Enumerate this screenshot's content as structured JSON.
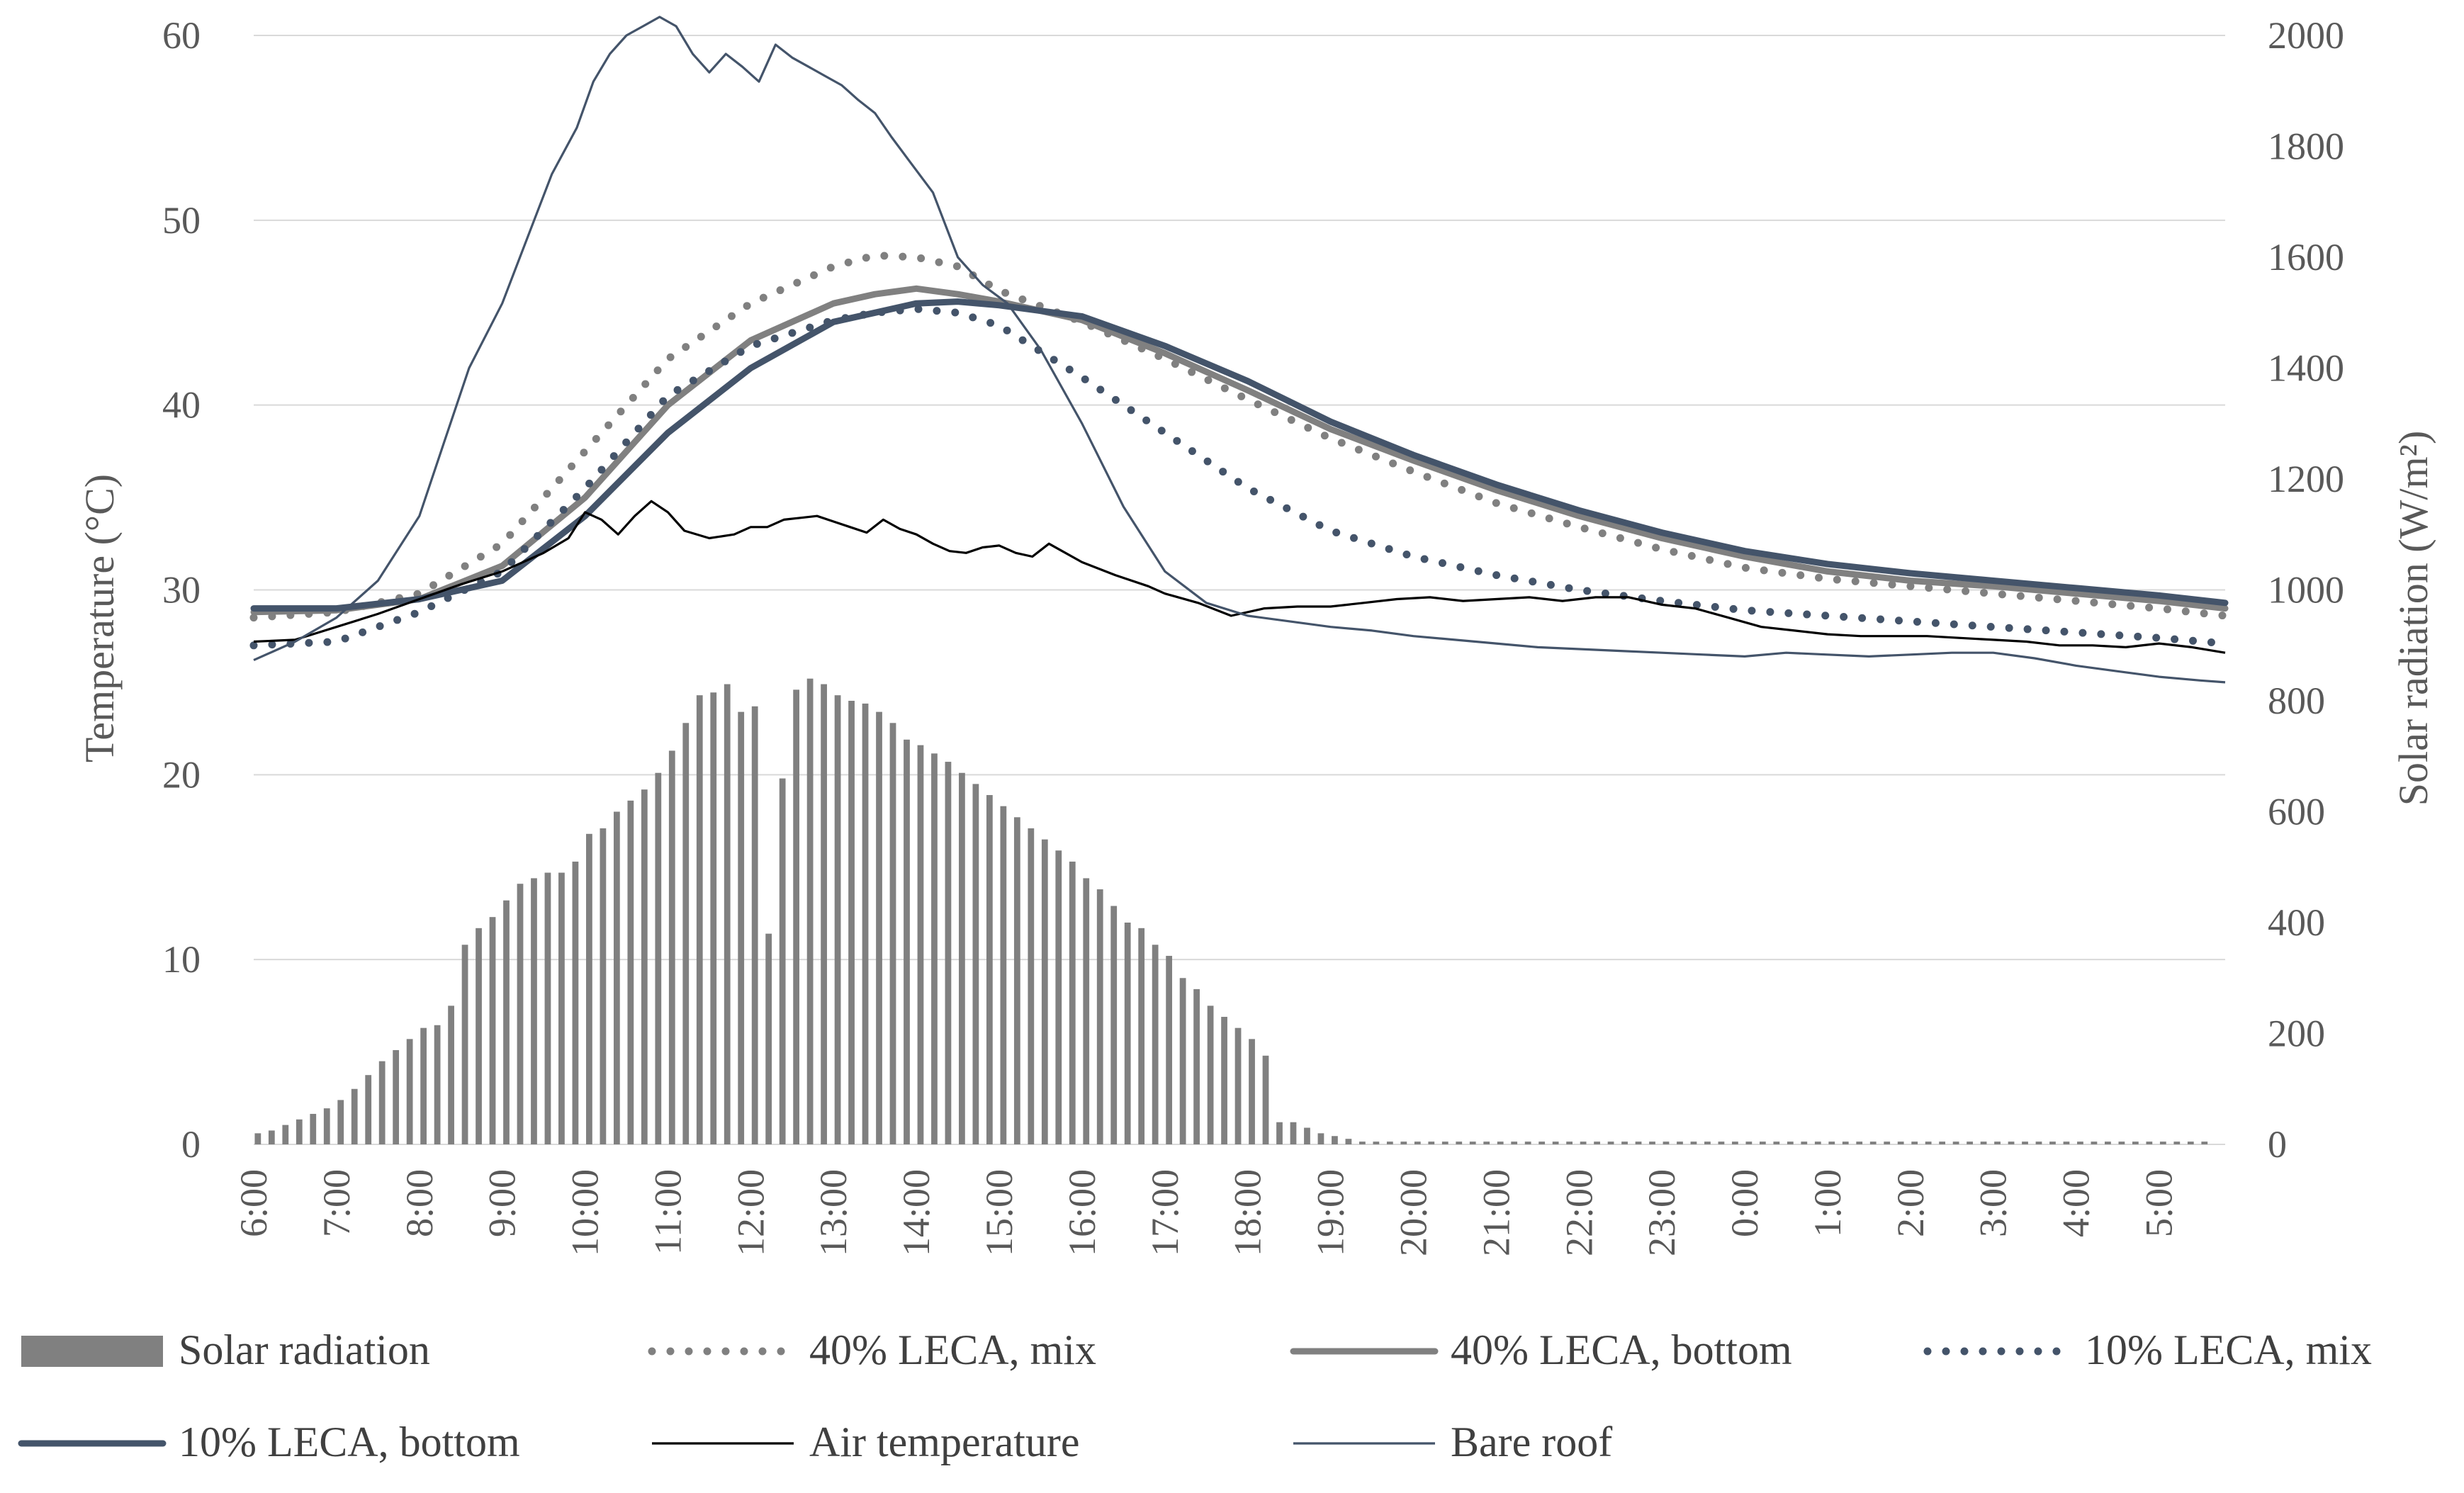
{
  "chart_data": {
    "type": "bar+line",
    "title": "",
    "xlabel": "",
    "ylabel_left": "Temperature  (°C)",
    "ylabel_right": "Solar radiation  (W/m²)",
    "ylim_left": [
      0,
      60
    ],
    "ylim_right": [
      0,
      2000
    ],
    "yticks_left": [
      "0",
      "10",
      "20",
      "30",
      "40",
      "50",
      "60"
    ],
    "yticks_right": [
      "0",
      "200",
      "400",
      "600",
      "800",
      "1000",
      "1200",
      "1400",
      "1600",
      "1800",
      "2000"
    ],
    "x_hours": [
      6,
      29.8
    ],
    "x_tick_labels": [
      "6:00",
      "7:00",
      "8:00",
      "9:00",
      "10:00",
      "11:00",
      "12:00",
      "13:00",
      "14:00",
      "15:00",
      "16:00",
      "17:00",
      "18:00",
      "19:00",
      "20:00",
      "21:00",
      "22:00",
      "23:00",
      "0:00",
      "1:00",
      "2:00",
      "3:00",
      "4:00",
      "5:00"
    ],
    "grid": true,
    "legend_position": "bottom",
    "solar_radiation": {
      "name": "Solar radiation",
      "color": "#808080",
      "step_minutes": 10,
      "values": [
        20,
        25,
        35,
        45,
        55,
        65,
        80,
        100,
        125,
        150,
        170,
        190,
        210,
        215,
        250,
        360,
        390,
        410,
        440,
        470,
        480,
        490,
        490,
        510,
        560,
        570,
        600,
        620,
        640,
        670,
        710,
        760,
        810,
        815,
        830,
        780,
        790,
        380,
        660,
        820,
        840,
        830,
        810,
        800,
        795,
        780,
        760,
        730,
        720,
        705,
        690,
        670,
        650,
        630,
        610,
        590,
        570,
        550,
        530,
        510,
        480,
        460,
        430,
        400,
        390,
        360,
        340,
        300,
        280,
        250,
        230,
        210,
        190,
        160,
        40,
        40,
        30,
        20,
        15,
        10,
        5,
        5,
        5,
        5,
        5,
        5,
        5,
        5,
        5,
        5,
        5,
        5,
        5,
        5,
        5,
        5,
        5,
        5,
        5,
        5,
        5,
        5,
        5,
        5,
        5,
        5,
        5,
        5,
        5,
        5,
        5,
        5,
        5,
        5,
        5,
        5,
        5,
        5,
        5,
        5,
        5,
        5,
        5,
        5,
        5,
        5,
        5,
        5,
        5,
        5,
        5,
        5,
        5,
        5,
        5,
        5,
        5,
        5,
        5,
        5,
        5,
        5
      ]
    },
    "series": [
      {
        "name": "40% LECA, mix",
        "color": "#808080",
        "style": "dotted",
        "x": [
          6,
          7,
          8,
          9,
          10,
          11,
          12,
          13,
          13.5,
          14,
          14.5,
          15,
          16,
          17,
          18,
          19,
          20,
          21,
          22,
          23,
          24,
          25,
          26,
          27,
          28,
          29,
          29.8
        ],
        "y": [
          28.5,
          28.8,
          29.8,
          32.5,
          37.5,
          42.5,
          45.5,
          47.5,
          48.1,
          48.0,
          47.5,
          46.2,
          44.5,
          42.5,
          40.3,
          38.2,
          36.4,
          34.7,
          33.4,
          32.2,
          31.2,
          30.6,
          30.2,
          29.8,
          29.4,
          29.0,
          28.6
        ]
      },
      {
        "name": "40% LECA, bottom",
        "color": "#808080",
        "style": "solid-thick",
        "x": [
          6,
          7,
          8,
          9,
          10,
          11,
          12,
          13,
          13.5,
          14,
          14.5,
          15,
          16,
          17,
          18,
          19,
          20,
          21,
          22,
          23,
          24,
          25,
          26,
          27,
          28,
          29,
          29.8
        ],
        "y": [
          28.8,
          28.9,
          29.5,
          31.3,
          35.0,
          40.0,
          43.5,
          45.5,
          46.0,
          46.3,
          46.0,
          45.6,
          44.6,
          42.8,
          40.8,
          38.7,
          37.0,
          35.4,
          34.0,
          32.8,
          31.8,
          31.0,
          30.5,
          30.2,
          29.8,
          29.4,
          29.0
        ]
      },
      {
        "name": "10% LECA, mix",
        "color": "#44546a",
        "style": "dotted",
        "x": [
          6,
          7,
          8,
          9,
          10,
          11,
          12,
          13,
          13.5,
          14,
          14.5,
          15,
          16,
          17,
          18,
          19,
          20,
          21,
          22,
          23,
          24,
          25,
          26,
          27,
          28,
          29,
          29.8
        ],
        "y": [
          27.0,
          27.2,
          28.8,
          31.0,
          35.5,
          40.5,
          43.2,
          44.6,
          45.0,
          45.2,
          45.0,
          44.3,
          41.5,
          38.5,
          35.5,
          33.2,
          31.8,
          30.8,
          30.0,
          29.4,
          28.9,
          28.6,
          28.3,
          28.0,
          27.7,
          27.4,
          27.1
        ]
      },
      {
        "name": "10% LECA, bottom",
        "color": "#44546a",
        "style": "solid-thick",
        "x": [
          6,
          7,
          8,
          9,
          10,
          11,
          12,
          13,
          13.5,
          14,
          14.5,
          15,
          16,
          17,
          18,
          19,
          20,
          21,
          22,
          23,
          24,
          25,
          26,
          27,
          28,
          29,
          29.8
        ],
        "y": [
          29.0,
          29.0,
          29.5,
          30.5,
          34.0,
          38.5,
          42.0,
          44.5,
          45.0,
          45.5,
          45.6,
          45.4,
          44.8,
          43.2,
          41.3,
          39.1,
          37.3,
          35.7,
          34.3,
          33.1,
          32.1,
          31.4,
          30.9,
          30.5,
          30.1,
          29.7,
          29.3
        ]
      },
      {
        "name": "Air temperature",
        "color": "#000000",
        "style": "solid-thin",
        "x": [
          6,
          6.5,
          7,
          7.5,
          8,
          8.5,
          9,
          9.5,
          9.8,
          10,
          10.2,
          10.4,
          10.6,
          10.8,
          11,
          11.2,
          11.5,
          11.8,
          12,
          12.2,
          12.4,
          12.6,
          12.8,
          13,
          13.2,
          13.4,
          13.6,
          13.8,
          14,
          14.2,
          14.4,
          14.6,
          14.8,
          15,
          15.2,
          15.4,
          15.6,
          16,
          16.4,
          16.8,
          17,
          17.4,
          17.8,
          18.2,
          18.6,
          19,
          19.4,
          19.8,
          20.2,
          20.6,
          21,
          21.4,
          21.8,
          22.2,
          22.6,
          23,
          23.4,
          23.8,
          24.2,
          24.6,
          25,
          25.4,
          25.8,
          26.2,
          26.6,
          27,
          27.4,
          27.8,
          28.2,
          28.6,
          29,
          29.4,
          29.8
        ],
        "y": [
          27.2,
          27.3,
          28.0,
          28.7,
          29.5,
          30.3,
          31.0,
          32.0,
          32.8,
          34.2,
          33.8,
          33.0,
          34.0,
          34.8,
          34.2,
          33.2,
          32.8,
          33.0,
          33.4,
          33.4,
          33.8,
          33.9,
          34.0,
          33.7,
          33.4,
          33.1,
          33.8,
          33.3,
          33.0,
          32.5,
          32.1,
          32.0,
          32.3,
          32.4,
          32.0,
          31.8,
          32.5,
          31.5,
          30.8,
          30.2,
          29.8,
          29.3,
          28.6,
          29.0,
          29.1,
          29.1,
          29.3,
          29.5,
          29.6,
          29.4,
          29.5,
          29.6,
          29.4,
          29.6,
          29.6,
          29.2,
          29.0,
          28.5,
          28.0,
          27.8,
          27.6,
          27.5,
          27.5,
          27.5,
          27.4,
          27.3,
          27.2,
          27.0,
          27.0,
          26.9,
          27.1,
          26.9,
          26.6
        ]
      },
      {
        "name": "Bare roof",
        "color": "#44546a",
        "style": "solid-thin",
        "x": [
          6,
          6.5,
          7,
          7.5,
          8,
          8.3,
          8.6,
          9,
          9.3,
          9.6,
          9.9,
          10.1,
          10.3,
          10.5,
          10.7,
          10.9,
          11.1,
          11.3,
          11.5,
          11.7,
          11.9,
          12.1,
          12.3,
          12.5,
          12.7,
          12.9,
          13.1,
          13.3,
          13.5,
          13.7,
          13.9,
          14.2,
          14.5,
          14.8,
          15.1,
          15.5,
          16,
          16.5,
          17,
          17.5,
          18,
          18.5,
          19,
          19.5,
          20,
          20.5,
          21,
          21.5,
          22,
          22.5,
          23,
          23.5,
          24,
          24.5,
          25,
          25.5,
          26,
          26.5,
          27,
          27.5,
          28,
          28.5,
          29,
          29.5,
          29.8
        ],
        "y": [
          26.2,
          27.2,
          28.5,
          30.5,
          34.0,
          38.0,
          42.0,
          45.5,
          49.0,
          52.5,
          55.0,
          57.5,
          59.0,
          60.0,
          60.5,
          61.0,
          60.5,
          59.0,
          58.0,
          59.0,
          58.3,
          57.5,
          59.5,
          58.8,
          58.3,
          57.8,
          57.3,
          56.5,
          55.8,
          54.5,
          53.3,
          51.5,
          48.0,
          46.5,
          45.5,
          43.0,
          39.0,
          34.5,
          31.0,
          29.3,
          28.6,
          28.3,
          28.0,
          27.8,
          27.5,
          27.3,
          27.1,
          26.9,
          26.8,
          26.7,
          26.6,
          26.5,
          26.4,
          26.6,
          26.5,
          26.4,
          26.5,
          26.6,
          26.6,
          26.3,
          25.9,
          25.6,
          25.3,
          25.1,
          25.0
        ]
      }
    ],
    "legend": [
      {
        "label": "Solar radiation",
        "kind": "bar",
        "color": "#808080"
      },
      {
        "label": "40% LECA, mix",
        "kind": "dotted",
        "color": "#808080"
      },
      {
        "label": "40% LECA, bottom",
        "kind": "solid-thick",
        "color": "#808080"
      },
      {
        "label": "10% LECA, mix",
        "kind": "dotted",
        "color": "#44546a"
      },
      {
        "label": "10% LECA, bottom",
        "kind": "solid-thick",
        "color": "#44546a"
      },
      {
        "label": "Air temperature",
        "kind": "solid-thin",
        "color": "#000000"
      },
      {
        "label": "Bare roof",
        "kind": "solid-thin",
        "color": "#44546a"
      }
    ]
  }
}
